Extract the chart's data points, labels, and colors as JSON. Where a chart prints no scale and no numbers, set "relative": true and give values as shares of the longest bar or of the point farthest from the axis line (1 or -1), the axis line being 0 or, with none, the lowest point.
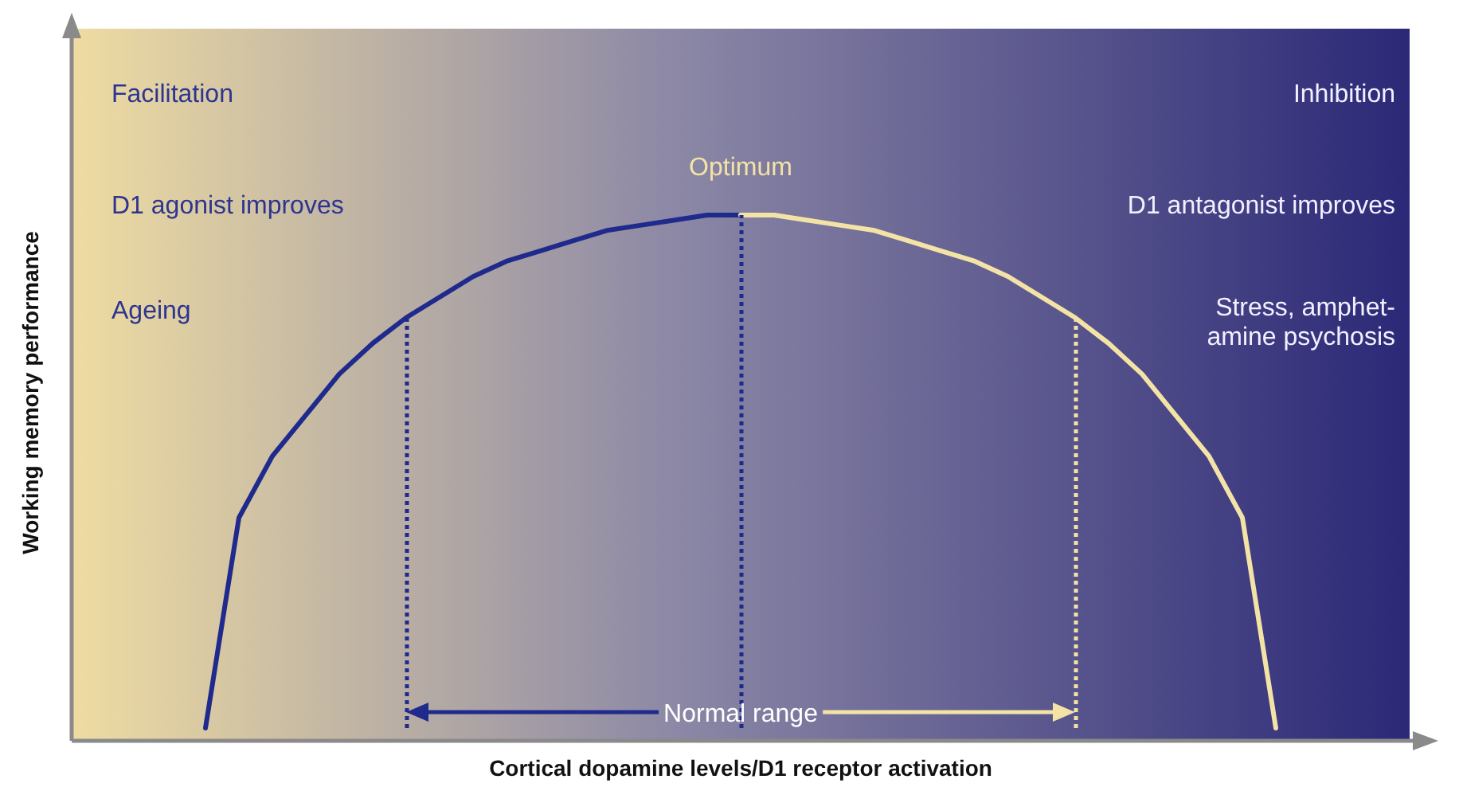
{
  "chart_data": {
    "type": "line",
    "relative": true,
    "xlabel": "Cortical dopamine levels/D1 receptor activation",
    "ylabel": "Working memory performance",
    "categories": [
      null,
      null,
      null,
      null,
      null,
      null,
      null,
      null,
      null,
      null,
      null,
      null,
      null,
      null,
      null,
      null,
      null,
      null,
      null,
      null,
      null,
      null,
      null,
      null,
      null,
      null,
      null,
      null,
      null,
      null,
      null,
      null,
      null,
      null,
      null,
      null,
      null,
      null,
      null,
      null,
      null
    ],
    "series": [
      {
        "color": "#1f2a8c",
        "values": [
          null,
          null,
          null,
          null,
          0,
          0.41,
          0.53,
          0.61,
          0.69,
          0.75,
          0.8,
          0.84,
          0.88,
          0.91,
          0.93,
          0.95,
          0.97,
          0.98,
          0.99,
          1,
          1,
          null,
          null,
          null,
          null,
          null,
          null,
          null,
          null,
          null,
          null,
          null,
          null,
          null,
          null,
          null,
          null,
          null,
          null,
          null,
          null
        ]
      },
      {
        "color": "#f3e3a6",
        "values": [
          null,
          null,
          null,
          null,
          null,
          null,
          null,
          null,
          null,
          null,
          null,
          null,
          null,
          null,
          null,
          null,
          null,
          null,
          null,
          null,
          1,
          1,
          0.99,
          0.98,
          0.97,
          0.95,
          0.93,
          0.91,
          0.88,
          0.84,
          0.8,
          0.75,
          0.69,
          0.61,
          0.53,
          0.41,
          0,
          null,
          null,
          null,
          null
        ]
      }
    ],
    "annotations": [
      "Facilitation",
      "Inhibition",
      "D1 agonist improves",
      "D1 antagonist improves",
      "Optimum",
      "Ageing",
      "Stress, amphet-\namine psychosis",
      "Normal range"
    ],
    "marker": "none",
    "line_style": "solid",
    "grid": false
  }
}
